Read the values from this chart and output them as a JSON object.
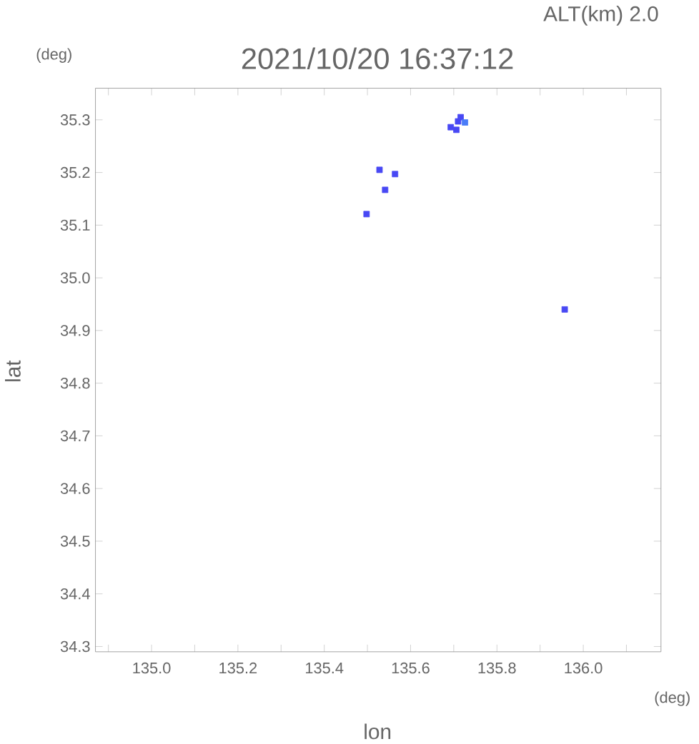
{
  "chart_data": {
    "type": "scatter",
    "title": "2021/10/20 16:37:12",
    "subtitle": "ALT(km) 2.0",
    "xlabel": "lon",
    "ylabel": "lat",
    "annotations": [
      "(deg)",
      "(deg)"
    ],
    "series": [
      {
        "color": "#4848f4",
        "x": [
          135.693,
          135.706,
          135.71,
          135.716,
          135.528,
          135.564,
          135.541,
          135.498,
          135.957
        ],
        "values": [
          35.286,
          35.281,
          35.297,
          35.305,
          35.205,
          35.197,
          35.167,
          35.121,
          34.94
        ]
      },
      {
        "color": "#4a7cf8",
        "x": [
          135.726
        ],
        "values": [
          35.295
        ]
      }
    ],
    "xlim": [
      134.87,
      136.18
    ],
    "ylim": [
      34.29,
      35.36
    ],
    "xticks": [
      {
        "value": 134.9,
        "label": null
      },
      {
        "value": 135.0,
        "label": "135.0"
      },
      {
        "value": 135.1,
        "label": null
      },
      {
        "value": 135.2,
        "label": "135.2"
      },
      {
        "value": 135.3,
        "label": null
      },
      {
        "value": 135.4,
        "label": "135.4"
      },
      {
        "value": 135.5,
        "label": null
      },
      {
        "value": 135.6,
        "label": "135.6"
      },
      {
        "value": 135.7,
        "label": null
      },
      {
        "value": 135.8,
        "label": "135.8"
      },
      {
        "value": 135.9,
        "label": null
      },
      {
        "value": 136.0,
        "label": "136.0"
      },
      {
        "value": 136.1,
        "label": null
      }
    ],
    "yticks": [
      {
        "value": 34.3,
        "label": "34.3"
      },
      {
        "value": 34.4,
        "label": "34.4"
      },
      {
        "value": 34.5,
        "label": "34.5"
      },
      {
        "value": 34.6,
        "label": "34.6"
      },
      {
        "value": 34.7,
        "label": "34.7"
      },
      {
        "value": 34.8,
        "label": "34.8"
      },
      {
        "value": 34.9,
        "label": "34.9"
      },
      {
        "value": 35.0,
        "label": "35.0"
      },
      {
        "value": 35.1,
        "label": "35.1"
      },
      {
        "value": 35.2,
        "label": "35.2"
      },
      {
        "value": 35.3,
        "label": "35.3"
      }
    ],
    "marker": "square",
    "grid": false
  }
}
